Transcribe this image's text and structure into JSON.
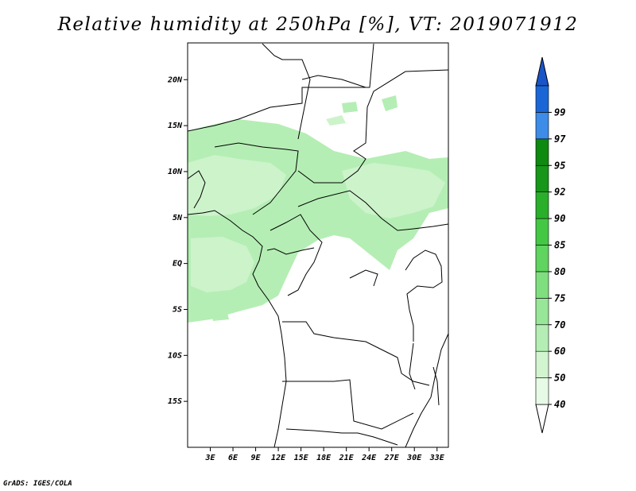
{
  "title": "Relative humidity at 250hPa [%], VT: 2019071912",
  "credit": "GrADS: IGES/COLA",
  "map": {
    "lon_range": [
      0,
      34.5
    ],
    "lat_range": [
      -20,
      24
    ],
    "lat_ticks": [
      {
        "value": 20,
        "label": "20N"
      },
      {
        "value": 15,
        "label": "15N"
      },
      {
        "value": 10,
        "label": "10N"
      },
      {
        "value": 5,
        "label": "5N"
      },
      {
        "value": 0,
        "label": "EQ"
      },
      {
        "value": -5,
        "label": "5S"
      },
      {
        "value": -10,
        "label": "10S"
      },
      {
        "value": -15,
        "label": "15S"
      }
    ],
    "lon_ticks": [
      {
        "value": 3,
        "label": "3E"
      },
      {
        "value": 6,
        "label": "6E"
      },
      {
        "value": 9,
        "label": "9E"
      },
      {
        "value": 12,
        "label": "12E"
      },
      {
        "value": 15,
        "label": "15E"
      },
      {
        "value": 18,
        "label": "18E"
      },
      {
        "value": 21,
        "label": "21E"
      },
      {
        "value": 24,
        "label": "24E"
      },
      {
        "value": 27,
        "label": "27E"
      },
      {
        "value": 30,
        "label": "30E"
      },
      {
        "value": 33,
        "label": "33E"
      }
    ]
  },
  "colorbar": {
    "levels": [
      {
        "label": "40",
        "color": "#e6fae6"
      },
      {
        "label": "50",
        "color": "#d2f5d0"
      },
      {
        "label": "60",
        "color": "#b4eeb4"
      },
      {
        "label": "70",
        "color": "#98e698"
      },
      {
        "label": "75",
        "color": "#7fdf7f"
      },
      {
        "label": "80",
        "color": "#5fd45f"
      },
      {
        "label": "85",
        "color": "#44c844"
      },
      {
        "label": "90",
        "color": "#2aaf2a"
      },
      {
        "label": "92",
        "color": "#17961a"
      },
      {
        "label": "95",
        "color": "#0f8a10"
      },
      {
        "label": "97",
        "color": "#3d8ce8"
      },
      {
        "label": "99",
        "color": "#1a66d6"
      }
    ],
    "top_arrow_color": "#1a55c8",
    "bottom_arrow_color": "#ffffff"
  }
}
